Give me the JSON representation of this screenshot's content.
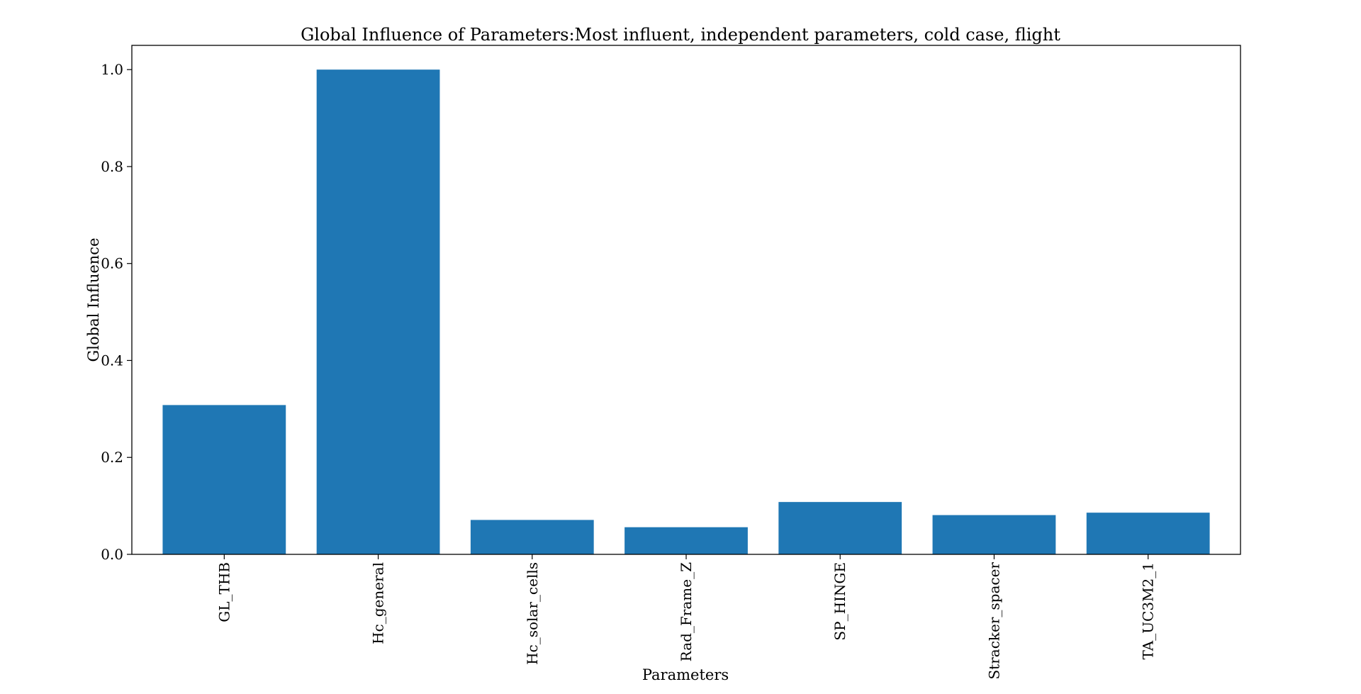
{
  "chart_data": {
    "type": "bar",
    "title": "Global Influence of Parameters:Most influent, independent parameters, cold case, flight",
    "xlabel": "Parameters",
    "ylabel": "Global Influence",
    "categories": [
      "GL_THB",
      "Hc_general",
      "Hc_solar_cells",
      "Rad_Frame_Z",
      "SP_HINGE",
      "Stracker_spacer",
      "TA_UC3M2_1"
    ],
    "values": [
      0.308,
      1.0,
      0.071,
      0.056,
      0.108,
      0.081,
      0.086
    ],
    "ylim": [
      0,
      1.05
    ],
    "yticks": [
      "0.0",
      "0.2",
      "0.4",
      "0.6",
      "0.8",
      "1.0"
    ],
    "grid": false,
    "bar_color": "#1f77b4",
    "x_tick_rotation": "vertical"
  }
}
